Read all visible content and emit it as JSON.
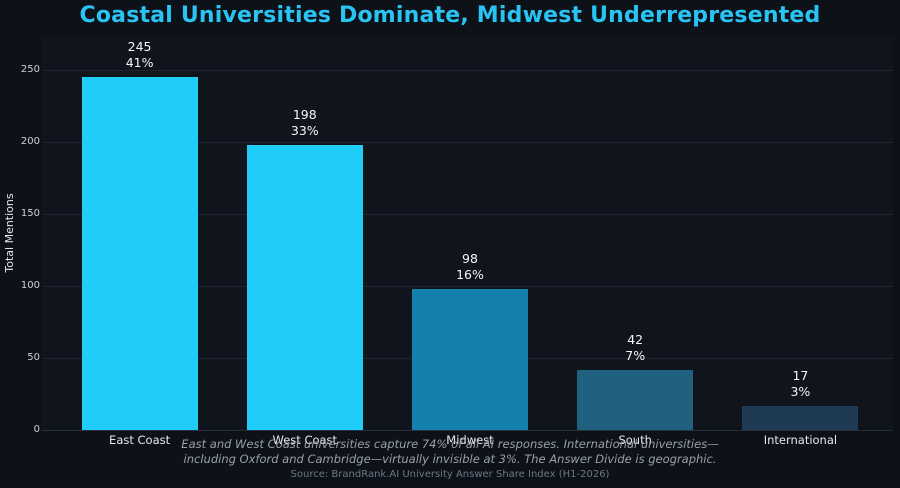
{
  "title": "Coastal Universities Dominate, Midwest Underrepresented",
  "chart_data": {
    "type": "bar",
    "title": "Coastal Universities Dominate, Midwest Underrepresented",
    "categories": [
      "East Coast",
      "West Coast",
      "Midwest",
      "South",
      "International"
    ],
    "values": [
      245,
      198,
      98,
      42,
      17
    ],
    "percent_labels": [
      "41%",
      "33%",
      "16%",
      "7%",
      "3%"
    ],
    "bar_colors": [
      "#20cdf8",
      "#20cdf8",
      "#1480ad",
      "#20617f",
      "#1e3a55"
    ],
    "xlabel": "",
    "ylabel": "Total Mentions",
    "yticks": [
      0,
      50,
      100,
      150,
      200,
      250
    ],
    "ylim": [
      0,
      273
    ],
    "grid": "horizontal",
    "legend": "none"
  },
  "annotation": {
    "line1": "East and West Coast universities capture 74% of all AI responses. International universities—",
    "line2": "including Oxford and Cambridge—virtually invisible at 3%. The Answer Divide is geographic."
  },
  "source": "Source: BrandRank.AI University Answer Share Index (H1-2026)",
  "colors": {
    "background": "#0d1118",
    "plot_background": "#10141d",
    "title": "#2ac4f4",
    "grid": "#1f2532",
    "axis_line": "#262d3b",
    "value_label": "#f4f6f8",
    "tick_label": "#ccd1d8",
    "annotation": "#9aa0ab",
    "source": "#6f7787"
  }
}
